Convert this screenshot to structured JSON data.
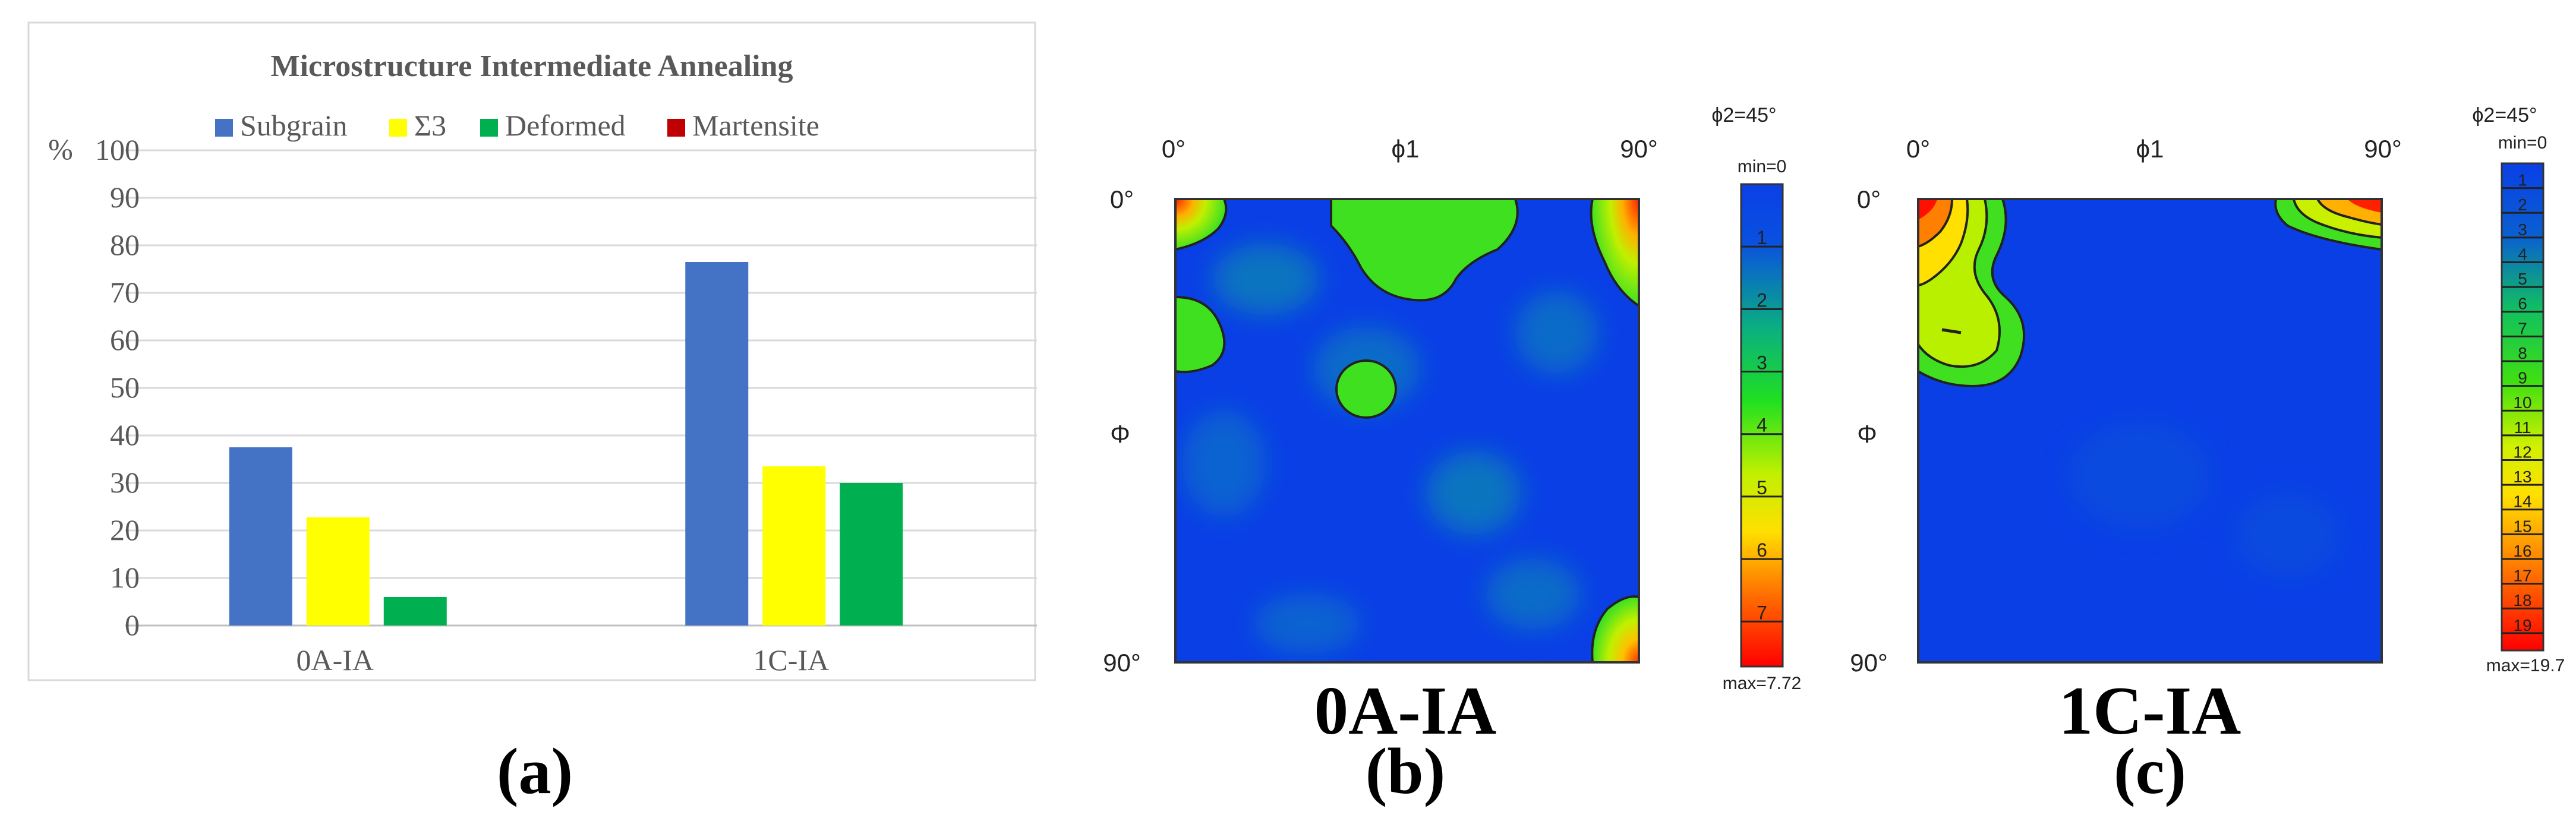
{
  "panel_labels": {
    "a": "(a)",
    "b": "(b)",
    "c": "(c)"
  },
  "colors": {
    "subgrain": "#4472C4",
    "sigma3": "#FFFF00",
    "deformed": "#00B050",
    "martensite": "#C00000",
    "grid": "#d9d9d9",
    "text": "#595959",
    "odf_background": "#0a3fe6",
    "odf_green": "#3fe020",
    "odf_red": "#e03010",
    "odf_orange": "#f0a020"
  },
  "chart_data": [
    {
      "type": "bar",
      "title": "Microstructure Intermediate Annealing",
      "ylabel": "%",
      "xlabel": "",
      "ylim": [
        0,
        100
      ],
      "yticks": [
        "100",
        "90",
        "80",
        "70",
        "60",
        "50",
        "40",
        "30",
        "20",
        "10",
        "0"
      ],
      "categories": [
        "0A-IA",
        "1C-IA"
      ],
      "grid": true,
      "legend_position": "top",
      "series": [
        {
          "name": "Subgrain",
          "values": [
            37.5,
            76.5
          ],
          "color_key": "subgrain"
        },
        {
          "name": "Σ3",
          "values": [
            22.8,
            33.5
          ],
          "color_key": "sigma3"
        },
        {
          "name": "Deformed",
          "values": [
            6.0,
            30.0
          ],
          "color_key": "deformed"
        },
        {
          "name": "Martensite",
          "values": [
            0,
            0
          ],
          "color_key": "martensite"
        }
      ]
    },
    {
      "type": "heatmap",
      "title": "0A-IA",
      "section_label": "ϕ2=45°",
      "x_axis_label": "ϕ1",
      "y_axis_label": "Φ",
      "x_ticks": [
        "0°",
        "90°"
      ],
      "y_ticks": [
        "0°",
        "90°"
      ],
      "scale_min_label": "min=0",
      "scale_max_label": "max=7.72",
      "scale_ticks": [
        "1",
        "2",
        "3",
        "4",
        "5",
        "6",
        "7"
      ],
      "max_value": 7.72
    },
    {
      "type": "heatmap",
      "title": "1C-IA",
      "section_label": "ϕ2=45°",
      "x_axis_label": "ϕ1",
      "y_axis_label": "Φ",
      "x_ticks": [
        "0°",
        "90°"
      ],
      "y_ticks": [
        "0°",
        "90°"
      ],
      "scale_min_label": "min=0",
      "scale_max_label": "max=19.7",
      "scale_ticks": [
        "1",
        "2",
        "3",
        "4",
        "5",
        "6",
        "7",
        "8",
        "9",
        "10",
        "11",
        "12",
        "13",
        "14",
        "15",
        "16",
        "17",
        "18",
        "19"
      ],
      "max_value": 19.7
    }
  ]
}
